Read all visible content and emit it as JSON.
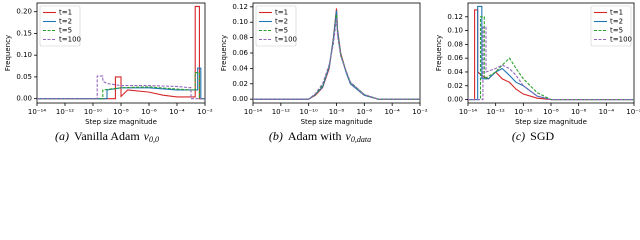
{
  "chart_data": [
    {
      "type": "line",
      "xlabel": "Step size magnitude",
      "ylabel": "Frequency",
      "log_x": true,
      "legend": "upper left",
      "caption": {
        "label": "(a)",
        "text": "Vanilla Adam",
        "math": "v",
        "sub": "0,0"
      },
      "xlim": [
        1e-14,
        0.01
      ],
      "xticks": [
        {
          "value": 1e-14,
          "label": "10⁻¹⁴"
        },
        {
          "value": 1e-12,
          "label": "10⁻¹²"
        },
        {
          "value": 1e-10,
          "label": "10⁻¹⁰"
        },
        {
          "value": 1e-08,
          "label": "10⁻⁸"
        },
        {
          "value": 1e-06,
          "label": "10⁻⁶"
        },
        {
          "value": 0.0001,
          "label": "10⁻⁴"
        },
        {
          "value": 0.01,
          "label": "10⁻²"
        }
      ],
      "ylim": [
        -0.01,
        0.22
      ],
      "yticks": [
        {
          "value": 0,
          "label": "0.00"
        },
        {
          "value": 0.05,
          "label": "0.05"
        },
        {
          "value": 0.1,
          "label": "0.10"
        },
        {
          "value": 0.15,
          "label": "0.15"
        },
        {
          "value": 0.2,
          "label": "0.20"
        }
      ],
      "series": [
        {
          "name": "t=1",
          "color": "#d62728",
          "dash": false,
          "x": [
            1e-14,
            1e-09,
            4e-09,
            4e-09,
            1e-08,
            1e-08,
            3e-08,
            1e-06,
            1e-05,
            0.0001,
            0.001,
            0.002,
            0.002,
            0.004,
            0.004,
            0.01
          ],
          "values": [
            0,
            0,
            0,
            0.05,
            0.05,
            0.005,
            0.02,
            0.015,
            0.008,
            0.004,
            0.004,
            0.004,
            0.212,
            0.212,
            0,
            0
          ]
        },
        {
          "name": "t=2",
          "color": "#1f77b4",
          "dash": false,
          "x": [
            1e-14,
            1e-09,
            1e-09,
            1e-08,
            1e-06,
            0.0001,
            0.001,
            0.003,
            0.003,
            0.005,
            0.005,
            0.01
          ],
          "values": [
            0,
            0,
            0.02,
            0.025,
            0.025,
            0.02,
            0.02,
            0.02,
            0.07,
            0.07,
            0,
            0
          ]
        },
        {
          "name": "t=5",
          "color": "#2ca02c",
          "dash": true,
          "x": [
            1e-14,
            5e-10,
            5e-10,
            1e-08,
            1e-06,
            0.0001,
            0.001,
            0.002,
            0.002,
            0.004,
            0.004,
            0.01
          ],
          "values": [
            0,
            0,
            0.02,
            0.025,
            0.027,
            0.022,
            0.02,
            0.02,
            0.06,
            0.06,
            0,
            0
          ]
        },
        {
          "name": "t=100",
          "color": "#9467bd",
          "dash": true,
          "x": [
            1e-14,
            2e-10,
            2e-10,
            5e-10,
            5e-10,
            1e-09,
            1e-08,
            1e-06,
            0.0001,
            0.001,
            0.001,
            0.01
          ],
          "values": [
            0,
            0,
            0.052,
            0.052,
            0.04,
            0.035,
            0.03,
            0.03,
            0.028,
            0.025,
            0,
            0
          ]
        }
      ]
    },
    {
      "type": "line",
      "xlabel": "Step size magnitude",
      "ylabel": "Frequency",
      "log_x": true,
      "legend": "upper left",
      "caption": {
        "label": "(b)",
        "text": "Adam with",
        "math": "v",
        "sub": "0,data"
      },
      "xlim": [
        1e-14,
        0.01
      ],
      "xticks": [
        {
          "value": 1e-14,
          "label": "10⁻¹⁴"
        },
        {
          "value": 1e-12,
          "label": "10⁻¹²"
        },
        {
          "value": 1e-10,
          "label": "10⁻¹⁰"
        },
        {
          "value": 1e-08,
          "label": "10⁻⁸"
        },
        {
          "value": 1e-06,
          "label": "10⁻⁶"
        },
        {
          "value": 0.0001,
          "label": "10⁻⁴"
        },
        {
          "value": 0.01,
          "label": "10⁻²"
        }
      ],
      "ylim": [
        -0.005,
        0.125
      ],
      "yticks": [
        {
          "value": 0,
          "label": "0.00"
        },
        {
          "value": 0.02,
          "label": "0.02"
        },
        {
          "value": 0.04,
          "label": "0.04"
        },
        {
          "value": 0.06,
          "label": "0.06"
        },
        {
          "value": 0.08,
          "label": "0.08"
        },
        {
          "value": 0.1,
          "label": "0.10"
        },
        {
          "value": 0.12,
          "label": "0.12"
        }
      ],
      "series": [
        {
          "name": "t=1",
          "color": "#d62728",
          "dash": false,
          "x": [
            1e-14,
            1e-10,
            3e-10,
            1e-09,
            3e-09,
            6e-09,
            1e-08,
            1.2e-08,
            2e-08,
            5e-08,
            1e-07,
            1e-06,
            1e-05,
            0.01
          ],
          "values": [
            0,
            0,
            0.005,
            0.015,
            0.04,
            0.08,
            0.118,
            0.09,
            0.06,
            0.035,
            0.02,
            0.005,
            0,
            0
          ]
        },
        {
          "name": "t=2",
          "color": "#1f77b4",
          "dash": false,
          "x": [
            1e-14,
            1e-10,
            3e-10,
            1e-09,
            3e-09,
            6e-09,
            1e-08,
            1.2e-08,
            2e-08,
            5e-08,
            1e-07,
            1e-06,
            1e-05,
            0.01
          ],
          "values": [
            0,
            0,
            0.006,
            0.016,
            0.042,
            0.078,
            0.115,
            0.088,
            0.058,
            0.034,
            0.02,
            0.005,
            0,
            0
          ]
        },
        {
          "name": "t=5",
          "color": "#2ca02c",
          "dash": true,
          "x": [
            1e-14,
            1e-10,
            3e-10,
            1e-09,
            3e-09,
            6e-09,
            1e-08,
            1.2e-08,
            2e-08,
            5e-08,
            1e-07,
            1e-06,
            1e-05,
            0.01
          ],
          "values": [
            0,
            0,
            0.006,
            0.018,
            0.044,
            0.075,
            0.11,
            0.085,
            0.058,
            0.036,
            0.022,
            0.006,
            0,
            0
          ]
        },
        {
          "name": "t=100",
          "color": "#9467bd",
          "dash": true,
          "x": [
            1e-14,
            1e-10,
            3e-10,
            1e-09,
            3e-09,
            6e-09,
            1e-08,
            1.2e-08,
            2e-08,
            5e-08,
            1e-07,
            1e-06,
            1e-05,
            0.01
          ],
          "values": [
            0,
            0,
            0.007,
            0.02,
            0.045,
            0.072,
            0.105,
            0.082,
            0.056,
            0.036,
            0.022,
            0.006,
            0,
            0
          ]
        }
      ]
    },
    {
      "type": "line",
      "xlabel": "Step size magnitude",
      "ylabel": "Frequency",
      "log_x": true,
      "legend": "upper right",
      "caption": {
        "label": "(c)",
        "text": "SGD"
      },
      "xlim": [
        1e-14,
        0.01
      ],
      "xticks": [
        {
          "value": 1e-14,
          "label": "10⁻¹⁴"
        },
        {
          "value": 1e-12,
          "label": "10⁻¹²"
        },
        {
          "value": 1e-10,
          "label": "10⁻¹⁰"
        },
        {
          "value": 1e-08,
          "label": "10⁻⁸"
        },
        {
          "value": 1e-06,
          "label": "10⁻⁶"
        },
        {
          "value": 0.0001,
          "label": "10⁻⁴"
        },
        {
          "value": 0.01,
          "label": "10⁻²"
        }
      ],
      "ylim": [
        -0.005,
        0.14
      ],
      "yticks": [
        {
          "value": 0,
          "label": "0.00"
        },
        {
          "value": 0.02,
          "label": "0.02"
        },
        {
          "value": 0.04,
          "label": "0.04"
        },
        {
          "value": 0.06,
          "label": "0.06"
        },
        {
          "value": 0.08,
          "label": "0.08"
        },
        {
          "value": 0.1,
          "label": "0.10"
        },
        {
          "value": 0.12,
          "label": "0.12"
        }
      ],
      "series": [
        {
          "name": "t=1",
          "color": "#d62728",
          "dash": false,
          "x": [
            1e-14,
            3e-14,
            3e-14,
            5e-14,
            5e-14,
            1e-13,
            3e-13,
            1e-12,
            3e-12,
            1e-11,
            3e-11,
            1e-10,
            1e-09,
            1e-08,
            0.01
          ],
          "values": [
            0,
            0,
            0.13,
            0.13,
            0.04,
            0.035,
            0.03,
            0.04,
            0.03,
            0.025,
            0.015,
            0.008,
            0.002,
            0,
            0
          ]
        },
        {
          "name": "t=2",
          "color": "#1f77b4",
          "dash": false,
          "x": [
            1e-14,
            5e-14,
            5e-14,
            1e-13,
            1e-13,
            3e-13,
            1e-12,
            3e-12,
            1e-11,
            3e-11,
            1e-10,
            1e-09,
            1e-08,
            0.01
          ],
          "values": [
            0,
            0,
            0.135,
            0.135,
            0.03,
            0.03,
            0.04,
            0.045,
            0.035,
            0.025,
            0.02,
            0.005,
            0,
            0
          ]
        },
        {
          "name": "t=5",
          "color": "#2ca02c",
          "dash": true,
          "x": [
            1e-14,
            8e-14,
            8e-14,
            1.5e-13,
            1.5e-13,
            1e-12,
            3e-12,
            1e-11,
            3e-11,
            1e-10,
            1e-09,
            1e-08,
            0.01
          ],
          "values": [
            0,
            0,
            0.12,
            0.12,
            0.03,
            0.04,
            0.05,
            0.06,
            0.045,
            0.03,
            0.01,
            0,
            0
          ]
        },
        {
          "name": "t=100",
          "color": "#9467bd",
          "dash": true,
          "x": [
            1e-14,
            1.2e-13,
            1.2e-13,
            2e-13,
            2e-13,
            1e-12,
            3e-12,
            1e-11,
            3e-11,
            1e-10,
            1e-09,
            1e-08,
            0.01
          ],
          "values": [
            0,
            0,
            0.105,
            0.105,
            0.04,
            0.045,
            0.05,
            0.045,
            0.035,
            0.02,
            0.005,
            0,
            0
          ]
        }
      ]
    }
  ]
}
